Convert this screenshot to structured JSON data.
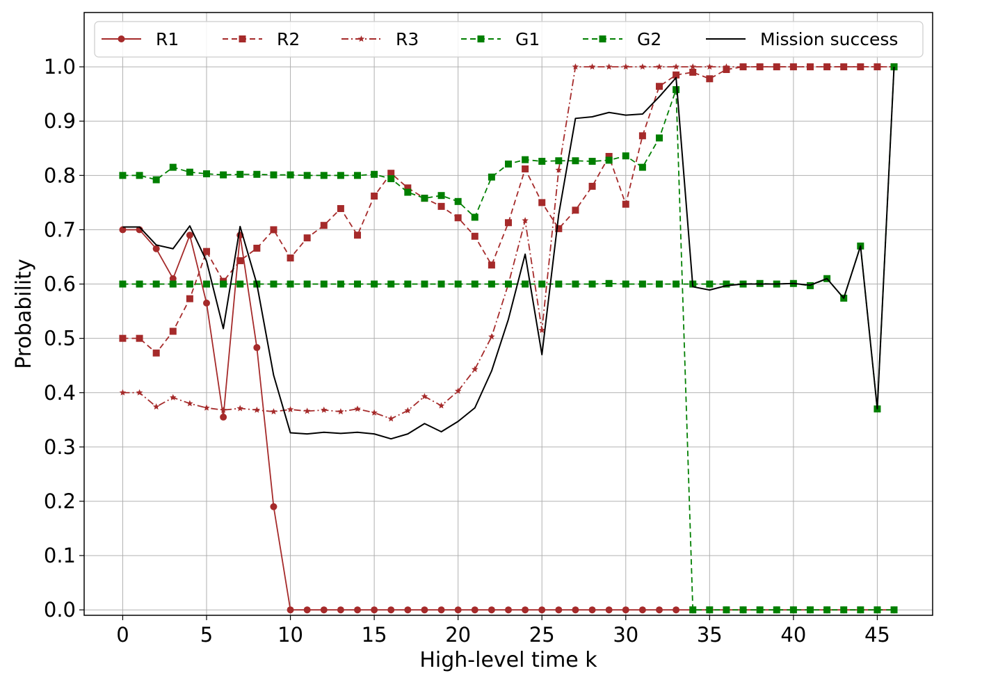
{
  "chart_data": {
    "type": "line",
    "xlabel": "High-level time k",
    "ylabel": "Probability",
    "xlim": [
      -2.3,
      48.3
    ],
    "ylim": [
      -0.01,
      1.1
    ],
    "xticks": [
      0,
      5,
      10,
      15,
      20,
      25,
      30,
      35,
      40,
      45
    ],
    "xtick_labels": [
      "0",
      "5",
      "10",
      "15",
      "20",
      "25",
      "30",
      "35",
      "40",
      "45"
    ],
    "yticks": [
      0.0,
      0.1,
      0.2,
      0.3,
      0.4,
      0.5,
      0.6,
      0.7,
      0.8,
      0.9,
      1.0
    ],
    "ytick_labels": [
      "0.0",
      "0.1",
      "0.2",
      "0.3",
      "0.4",
      "0.5",
      "0.6",
      "0.7",
      "0.8",
      "0.9",
      "1.0"
    ],
    "grid": true,
    "legend_position": "top",
    "series": [
      {
        "name": "R1",
        "color": "#a52a2a",
        "linestyle": "solid",
        "marker": "circle",
        "x": [
          0,
          1,
          2,
          3,
          4,
          5,
          6,
          7,
          8,
          9,
          10,
          11,
          12,
          13,
          14,
          15,
          16,
          17,
          18,
          19,
          20,
          21,
          22,
          23,
          24,
          25,
          26,
          27,
          28,
          29,
          30,
          31,
          32,
          33,
          34,
          35,
          36,
          37,
          38,
          39,
          40,
          41,
          42,
          43,
          44,
          45,
          46
        ],
        "values": [
          0.7,
          0.7,
          0.665,
          0.61,
          0.69,
          0.565,
          0.355,
          0.69,
          0.483,
          0.19,
          0.0,
          0,
          0,
          0,
          0,
          0,
          0,
          0,
          0,
          0,
          0,
          0,
          0,
          0,
          0,
          0,
          0,
          0,
          0,
          0,
          0,
          0,
          0,
          0,
          0,
          0,
          0,
          0,
          0,
          0,
          0,
          0,
          0,
          0,
          0,
          0,
          0
        ]
      },
      {
        "name": "R2",
        "color": "#a52a2a",
        "linestyle": "dashed",
        "marker": "square",
        "x": [
          0,
          1,
          2,
          3,
          4,
          5,
          6,
          7,
          8,
          9,
          10,
          11,
          12,
          13,
          14,
          15,
          16,
          17,
          18,
          19,
          20,
          21,
          22,
          23,
          24,
          25,
          26,
          27,
          28,
          29,
          30,
          31,
          32,
          33,
          34,
          35,
          36,
          37,
          38,
          39,
          40,
          41,
          42,
          43,
          44,
          45,
          46
        ],
        "values": [
          0.5,
          0.5,
          0.473,
          0.513,
          0.573,
          0.66,
          0.605,
          0.643,
          0.666,
          0.7,
          0.648,
          0.685,
          0.708,
          0.739,
          0.69,
          0.762,
          0.804,
          0.777,
          0.758,
          0.743,
          0.722,
          0.688,
          0.635,
          0.713,
          0.812,
          0.75,
          0.702,
          0.736,
          0.78,
          0.835,
          0.747,
          0.873,
          0.964,
          0.985,
          0.99,
          0.978,
          0.995,
          1.0,
          1.0,
          1.0,
          1.0,
          1.0,
          1.0,
          1.0,
          1.0,
          1.0,
          1.0
        ]
      },
      {
        "name": "R3",
        "color": "#a52a2a",
        "linestyle": "dashdot",
        "marker": "star",
        "x": [
          0,
          1,
          2,
          3,
          4,
          5,
          6,
          7,
          8,
          9,
          10,
          11,
          12,
          13,
          14,
          15,
          16,
          17,
          18,
          19,
          20,
          21,
          22,
          23,
          24,
          25,
          26,
          27,
          28,
          29,
          30,
          31,
          32,
          33,
          34,
          35,
          36,
          37,
          38,
          39,
          40,
          41,
          42,
          43,
          44,
          45,
          46
        ],
        "values": [
          0.4,
          0.4,
          0.374,
          0.391,
          0.38,
          0.372,
          0.368,
          0.371,
          0.368,
          0.365,
          0.369,
          0.366,
          0.368,
          0.365,
          0.37,
          0.363,
          0.352,
          0.367,
          0.393,
          0.376,
          0.403,
          0.443,
          0.503,
          0.6,
          0.717,
          0.515,
          0.81,
          1.0,
          1.0,
          1.0,
          1.0,
          1.0,
          1.0,
          1.0,
          1.0,
          1.0,
          1.0,
          1.0,
          1.0,
          1.0,
          1.0,
          1.0,
          1.0,
          1.0,
          1.0,
          1.0,
          1.0
        ]
      },
      {
        "name": "G1",
        "color": "#007f00",
        "linestyle": "dashed",
        "marker": "square",
        "x": [
          0,
          1,
          2,
          3,
          4,
          5,
          6,
          7,
          8,
          9,
          10,
          11,
          12,
          13,
          14,
          15,
          16,
          17,
          18,
          19,
          20,
          21,
          22,
          23,
          24,
          25,
          26,
          27,
          28,
          29,
          30,
          31,
          32,
          33,
          34,
          35,
          36,
          37,
          38,
          39,
          40,
          41,
          42,
          43,
          44,
          45,
          46
        ],
        "values": [
          0.8,
          0.8,
          0.792,
          0.815,
          0.806,
          0.803,
          0.801,
          0.802,
          0.802,
          0.801,
          0.801,
          0.8,
          0.8,
          0.8,
          0.8,
          0.802,
          0.794,
          0.769,
          0.758,
          0.763,
          0.752,
          0.723,
          0.797,
          0.821,
          0.829,
          0.826,
          0.827,
          0.827,
          0.826,
          0.828,
          0.836,
          0.815,
          0.869,
          0.958,
          0.0,
          0.0,
          0.0,
          0.0,
          0.0,
          0.0,
          0.0,
          0.0,
          0.0,
          0.0,
          0.0,
          0.0,
          0.0
        ]
      },
      {
        "name": "G2",
        "color": "#007f00",
        "linestyle": "dashed",
        "marker": "square",
        "x": [
          0,
          1,
          2,
          3,
          4,
          5,
          6,
          7,
          8,
          9,
          10,
          11,
          12,
          13,
          14,
          15,
          16,
          17,
          18,
          19,
          20,
          21,
          22,
          23,
          24,
          25,
          26,
          27,
          28,
          29,
          30,
          31,
          32,
          33,
          34,
          35,
          36,
          37,
          38,
          39,
          40,
          41,
          42,
          43,
          44,
          45,
          46
        ],
        "values": [
          0.6,
          0.6,
          0.6,
          0.6,
          0.6,
          0.6,
          0.6,
          0.6,
          0.6,
          0.6,
          0.6,
          0.6,
          0.6,
          0.6,
          0.6,
          0.6,
          0.6,
          0.6,
          0.6,
          0.6,
          0.6,
          0.6,
          0.6,
          0.6,
          0.6,
          0.6,
          0.6,
          0.6,
          0.6,
          0.601,
          0.6,
          0.6,
          0.6,
          0.6,
          0.6,
          0.6,
          0.6,
          0.6,
          0.601,
          0.6,
          0.601,
          0.597,
          0.61,
          0.574,
          0.67,
          0.37,
          1.0
        ]
      },
      {
        "name": "Mission success",
        "color": "#000000",
        "linestyle": "solid",
        "marker": "none",
        "x": [
          0,
          1,
          2,
          3,
          4,
          5,
          6,
          7,
          8,
          9,
          10,
          11,
          12,
          13,
          14,
          15,
          16,
          17,
          18,
          19,
          20,
          21,
          22,
          23,
          24,
          25,
          26,
          27,
          28,
          29,
          30,
          31,
          32,
          33,
          34,
          35,
          36,
          37,
          38,
          39,
          40,
          41,
          42,
          43,
          44,
          45,
          46
        ],
        "values": [
          0.705,
          0.705,
          0.672,
          0.665,
          0.707,
          0.642,
          0.518,
          0.706,
          0.6,
          0.432,
          0.326,
          0.324,
          0.327,
          0.325,
          0.327,
          0.324,
          0.315,
          0.324,
          0.343,
          0.328,
          0.347,
          0.372,
          0.44,
          0.535,
          0.655,
          0.47,
          0.728,
          0.905,
          0.908,
          0.916,
          0.911,
          0.913,
          0.945,
          0.98,
          0.595,
          0.589,
          0.597,
          0.6,
          0.6,
          0.6,
          0.601,
          0.598,
          0.61,
          0.574,
          0.67,
          0.37,
          1.0
        ]
      }
    ]
  }
}
